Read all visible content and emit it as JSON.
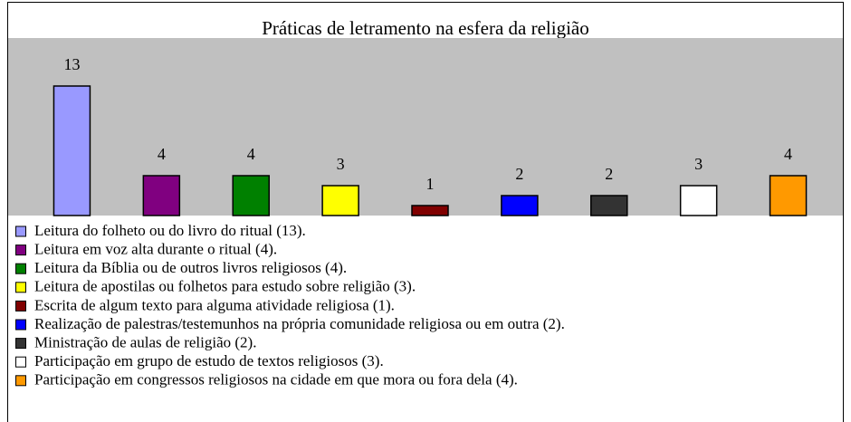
{
  "chart_data": {
    "type": "bar",
    "title": "Práticas de letramento na esfera da religião",
    "categories": [
      "Leitura do folheto ou do livro do ritual (13).",
      "Leitura em voz alta durante o ritual (4).",
      "Leitura da Bíblia ou de outros livros religiosos (4).",
      "Leitura de apostilas ou folhetos para estudo sobre religião (3).",
      "Escrita de algum texto para alguma atividade religiosa (1).",
      "Realização de palestras/testemunhos na própria comunidade religiosa ou em outra (2).",
      "Ministração de aulas de religião (2).",
      "Participação em grupo de estudo de textos religiosos (3).",
      "Participação em congressos religiosos na cidade em que mora ou fora dela (4)."
    ],
    "values": [
      13,
      4,
      4,
      3,
      1,
      2,
      2,
      3,
      4
    ],
    "colors": [
      "#9999ff",
      "#800080",
      "#008000",
      "#ffff00",
      "#800000",
      "#0000ff",
      "#333333",
      "#ffffff",
      "#ff9900"
    ],
    "legend": "bottom",
    "plot_background": "#c0c0c0"
  }
}
